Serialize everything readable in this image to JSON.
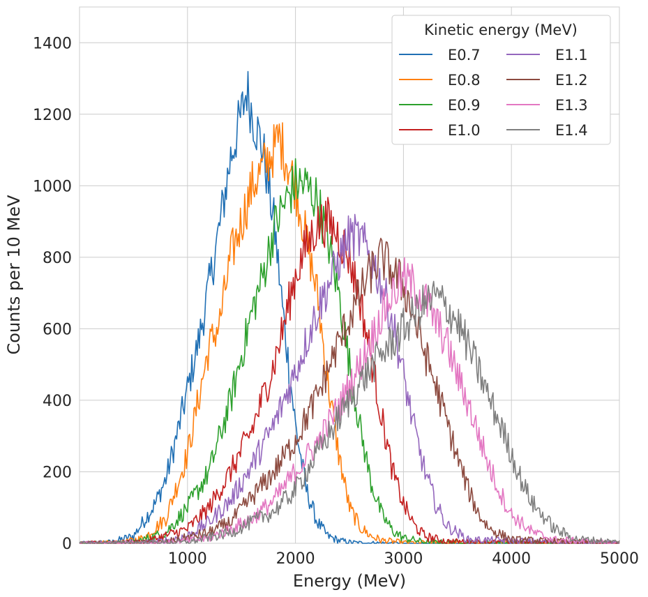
{
  "chart_data": {
    "type": "line",
    "title": "",
    "xlabel": "Energy (MeV)",
    "ylabel": "Counts per 10 MeV",
    "xlim": [
      0,
      5000
    ],
    "ylim": [
      0,
      1500
    ],
    "xticks": [
      1000,
      2000,
      3000,
      4000,
      5000
    ],
    "yticks": [
      0,
      200,
      400,
      600,
      800,
      1000,
      1200,
      1400
    ],
    "grid": true,
    "legend": {
      "title": "Kinetic energy (MeV)",
      "placement": "top-right",
      "columns": 2
    },
    "series": [
      {
        "name": "E0.7",
        "color": "#1f6fb4",
        "x": [
          0,
          300,
          500,
          700,
          800,
          900,
          1000,
          1100,
          1200,
          1300,
          1400,
          1500,
          1550,
          1600,
          1700,
          1800,
          1900,
          2000,
          2100,
          2200,
          2300,
          2400,
          2500,
          2600,
          3000,
          5000
        ],
        "y": [
          0,
          3,
          20,
          110,
          180,
          300,
          430,
          560,
          720,
          890,
          1080,
          1200,
          1270,
          1200,
          1100,
          900,
          600,
          330,
          150,
          60,
          20,
          8,
          3,
          1,
          0,
          0
        ]
      },
      {
        "name": "E0.8",
        "color": "#ff7f0e",
        "x": [
          0,
          400,
          600,
          800,
          1000,
          1100,
          1200,
          1300,
          1400,
          1500,
          1600,
          1700,
          1800,
          1850,
          1900,
          2000,
          2100,
          2200,
          2300,
          2400,
          2500,
          2600,
          2700,
          2800,
          3000,
          5000
        ],
        "y": [
          0,
          2,
          15,
          70,
          250,
          400,
          550,
          620,
          800,
          900,
          1000,
          1050,
          1100,
          1135,
          1090,
          1000,
          850,
          700,
          450,
          250,
          100,
          45,
          20,
          8,
          2,
          0
        ]
      },
      {
        "name": "E0.9",
        "color": "#2ca02c",
        "x": [
          0,
          500,
          800,
          1000,
          1200,
          1400,
          1600,
          1700,
          1800,
          1900,
          2000,
          2100,
          2200,
          2300,
          2400,
          2500,
          2600,
          2700,
          2800,
          2900,
          3000,
          3200,
          5000
        ],
        "y": [
          0,
          2,
          30,
          100,
          200,
          400,
          650,
          750,
          880,
          950,
          1010,
          1000,
          960,
          850,
          700,
          500,
          320,
          170,
          80,
          35,
          15,
          3,
          0
        ]
      },
      {
        "name": "E1.0",
        "color": "#c41f1f",
        "x": [
          0,
          600,
          1000,
          1200,
          1400,
          1600,
          1800,
          1900,
          2000,
          2100,
          2200,
          2300,
          2400,
          2500,
          2600,
          2700,
          2800,
          2900,
          3000,
          3100,
          3200,
          3400,
          5000
        ],
        "y": [
          0,
          3,
          40,
          100,
          200,
          320,
          500,
          620,
          750,
          830,
          890,
          900,
          860,
          800,
          680,
          520,
          350,
          200,
          110,
          50,
          20,
          5,
          0
        ]
      },
      {
        "name": "E1.1",
        "color": "#9467bd",
        "x": [
          0,
          700,
          1000,
          1200,
          1400,
          1600,
          1800,
          2000,
          2200,
          2300,
          2400,
          2500,
          2600,
          2700,
          2800,
          2900,
          3000,
          3100,
          3200,
          3300,
          3400,
          3600,
          5000
        ],
        "y": [
          0,
          3,
          20,
          60,
          120,
          220,
          330,
          480,
          650,
          720,
          790,
          860,
          850,
          800,
          720,
          620,
          470,
          320,
          200,
          110,
          50,
          10,
          0
        ]
      },
      {
        "name": "E1.2",
        "color": "#8c4a3f",
        "x": [
          0,
          800,
          1200,
          1400,
          1600,
          1800,
          2000,
          2200,
          2400,
          2600,
          2700,
          2800,
          2900,
          3000,
          3100,
          3200,
          3300,
          3400,
          3500,
          3600,
          3700,
          3800,
          4000,
          5000
        ],
        "y": [
          0,
          3,
          30,
          60,
          130,
          200,
          290,
          410,
          560,
          700,
          760,
          800,
          760,
          720,
          630,
          530,
          440,
          340,
          240,
          150,
          80,
          40,
          10,
          0
        ]
      },
      {
        "name": "E1.3",
        "color": "#e377c2",
        "x": [
          0,
          900,
          1200,
          1400,
          1600,
          1800,
          2000,
          2200,
          2400,
          2600,
          2800,
          2900,
          3000,
          3100,
          3200,
          3300,
          3400,
          3500,
          3600,
          3700,
          3800,
          3900,
          4000,
          4200,
          4400,
          5000
        ],
        "y": [
          0,
          3,
          15,
          40,
          70,
          120,
          200,
          280,
          380,
          500,
          640,
          700,
          740,
          720,
          680,
          620,
          560,
          470,
          390,
          300,
          210,
          140,
          80,
          30,
          10,
          0
        ]
      },
      {
        "name": "E1.4",
        "color": "#7f7f7f",
        "x": [
          0,
          1000,
          1400,
          1600,
          1800,
          2000,
          2200,
          2400,
          2600,
          2800,
          3000,
          3100,
          3200,
          3300,
          3400,
          3500,
          3600,
          3700,
          3800,
          3900,
          4000,
          4100,
          4200,
          4400,
          4600,
          5000
        ],
        "y": [
          0,
          3,
          30,
          60,
          90,
          150,
          250,
          350,
          450,
          530,
          600,
          640,
          670,
          690,
          660,
          620,
          550,
          480,
          400,
          330,
          250,
          170,
          110,
          40,
          12,
          3
        ]
      }
    ]
  }
}
